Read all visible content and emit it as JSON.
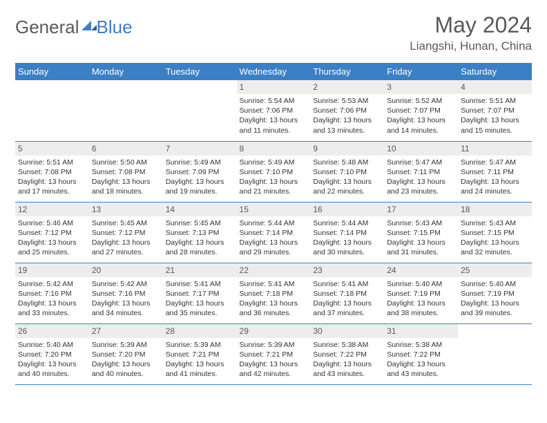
{
  "logo": {
    "text1": "General",
    "text2": "Blue"
  },
  "title": "May 2024",
  "location": "Liangshi, Hunan, China",
  "headers": [
    "Sunday",
    "Monday",
    "Tuesday",
    "Wednesday",
    "Thursday",
    "Friday",
    "Saturday"
  ],
  "colors": {
    "header_bg": "#3b7fc4",
    "header_text": "#ffffff",
    "daynum_bg": "#ededed",
    "text": "#595959",
    "border": "#3b7fc4"
  },
  "fonts": {
    "title_size": 32,
    "location_size": 17,
    "header_size": 13,
    "daynum_size": 12,
    "info_size": 10.5
  },
  "weeks": [
    [
      null,
      null,
      null,
      {
        "n": "1",
        "sr": "5:54 AM",
        "ss": "7:06 PM",
        "dl": "13 hours and 11 minutes."
      },
      {
        "n": "2",
        "sr": "5:53 AM",
        "ss": "7:06 PM",
        "dl": "13 hours and 13 minutes."
      },
      {
        "n": "3",
        "sr": "5:52 AM",
        "ss": "7:07 PM",
        "dl": "13 hours and 14 minutes."
      },
      {
        "n": "4",
        "sr": "5:51 AM",
        "ss": "7:07 PM",
        "dl": "13 hours and 15 minutes."
      }
    ],
    [
      {
        "n": "5",
        "sr": "5:51 AM",
        "ss": "7:08 PM",
        "dl": "13 hours and 17 minutes."
      },
      {
        "n": "6",
        "sr": "5:50 AM",
        "ss": "7:08 PM",
        "dl": "13 hours and 18 minutes."
      },
      {
        "n": "7",
        "sr": "5:49 AM",
        "ss": "7:09 PM",
        "dl": "13 hours and 19 minutes."
      },
      {
        "n": "8",
        "sr": "5:49 AM",
        "ss": "7:10 PM",
        "dl": "13 hours and 21 minutes."
      },
      {
        "n": "9",
        "sr": "5:48 AM",
        "ss": "7:10 PM",
        "dl": "13 hours and 22 minutes."
      },
      {
        "n": "10",
        "sr": "5:47 AM",
        "ss": "7:11 PM",
        "dl": "13 hours and 23 minutes."
      },
      {
        "n": "11",
        "sr": "5:47 AM",
        "ss": "7:11 PM",
        "dl": "13 hours and 24 minutes."
      }
    ],
    [
      {
        "n": "12",
        "sr": "5:46 AM",
        "ss": "7:12 PM",
        "dl": "13 hours and 25 minutes."
      },
      {
        "n": "13",
        "sr": "5:45 AM",
        "ss": "7:12 PM",
        "dl": "13 hours and 27 minutes."
      },
      {
        "n": "14",
        "sr": "5:45 AM",
        "ss": "7:13 PM",
        "dl": "13 hours and 28 minutes."
      },
      {
        "n": "15",
        "sr": "5:44 AM",
        "ss": "7:14 PM",
        "dl": "13 hours and 29 minutes."
      },
      {
        "n": "16",
        "sr": "5:44 AM",
        "ss": "7:14 PM",
        "dl": "13 hours and 30 minutes."
      },
      {
        "n": "17",
        "sr": "5:43 AM",
        "ss": "7:15 PM",
        "dl": "13 hours and 31 minutes."
      },
      {
        "n": "18",
        "sr": "5:43 AM",
        "ss": "7:15 PM",
        "dl": "13 hours and 32 minutes."
      }
    ],
    [
      {
        "n": "19",
        "sr": "5:42 AM",
        "ss": "7:16 PM",
        "dl": "13 hours and 33 minutes."
      },
      {
        "n": "20",
        "sr": "5:42 AM",
        "ss": "7:16 PM",
        "dl": "13 hours and 34 minutes."
      },
      {
        "n": "21",
        "sr": "5:41 AM",
        "ss": "7:17 PM",
        "dl": "13 hours and 35 minutes."
      },
      {
        "n": "22",
        "sr": "5:41 AM",
        "ss": "7:18 PM",
        "dl": "13 hours and 36 minutes."
      },
      {
        "n": "23",
        "sr": "5:41 AM",
        "ss": "7:18 PM",
        "dl": "13 hours and 37 minutes."
      },
      {
        "n": "24",
        "sr": "5:40 AM",
        "ss": "7:19 PM",
        "dl": "13 hours and 38 minutes."
      },
      {
        "n": "25",
        "sr": "5:40 AM",
        "ss": "7:19 PM",
        "dl": "13 hours and 39 minutes."
      }
    ],
    [
      {
        "n": "26",
        "sr": "5:40 AM",
        "ss": "7:20 PM",
        "dl": "13 hours and 40 minutes."
      },
      {
        "n": "27",
        "sr": "5:39 AM",
        "ss": "7:20 PM",
        "dl": "13 hours and 40 minutes."
      },
      {
        "n": "28",
        "sr": "5:39 AM",
        "ss": "7:21 PM",
        "dl": "13 hours and 41 minutes."
      },
      {
        "n": "29",
        "sr": "5:39 AM",
        "ss": "7:21 PM",
        "dl": "13 hours and 42 minutes."
      },
      {
        "n": "30",
        "sr": "5:38 AM",
        "ss": "7:22 PM",
        "dl": "13 hours and 43 minutes."
      },
      {
        "n": "31",
        "sr": "5:38 AM",
        "ss": "7:22 PM",
        "dl": "13 hours and 43 minutes."
      },
      null
    ]
  ],
  "labels": {
    "sunrise": "Sunrise:",
    "sunset": "Sunset:",
    "daylight": "Daylight:"
  }
}
